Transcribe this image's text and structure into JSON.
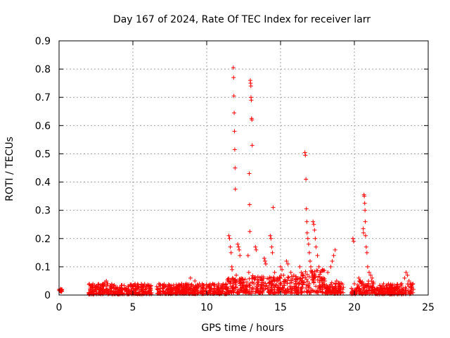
{
  "chart_data": {
    "type": "scatter",
    "title": "Day 167 of 2024, Rate Of TEC Index for receiver larr",
    "xlabel": "GPS time / hours",
    "ylabel": "ROTI / TECUs",
    "xlim": [
      0,
      25
    ],
    "ylim": [
      0,
      0.9
    ],
    "xticks": [
      "0",
      "5",
      "10",
      "15",
      "20",
      "25"
    ],
    "yticks": [
      "0",
      "0.1",
      "0.2",
      "0.3",
      "0.4",
      "0.5",
      "0.6",
      "0.7",
      "0.8",
      "0.9"
    ],
    "grid": true,
    "marker": "plus",
    "color": "#ff0000",
    "series": [
      {
        "points": [
          [
            0.0,
            0.02
          ],
          [
            0.05,
            0.015
          ],
          [
            0.1,
            0.018
          ],
          [
            0.15,
            0.012
          ],
          [
            0.2,
            0.02
          ],
          [
            2.1,
            0.02
          ],
          [
            2.3,
            0.025
          ],
          [
            2.5,
            0.03
          ],
          [
            2.7,
            0.02
          ],
          [
            2.9,
            0.035
          ],
          [
            3.0,
            0.04
          ],
          [
            3.1,
            0.045
          ],
          [
            3.2,
            0.05
          ],
          [
            3.3,
            0.04
          ],
          [
            3.5,
            0.03
          ],
          [
            3.7,
            0.025
          ],
          [
            4.0,
            0.02
          ],
          [
            4.3,
            0.018
          ],
          [
            4.6,
            0.02
          ],
          [
            5.0,
            0.022
          ],
          [
            5.3,
            0.025
          ],
          [
            5.6,
            0.02
          ],
          [
            5.9,
            0.03
          ],
          [
            6.1,
            0.035
          ],
          [
            6.2,
            0.025
          ],
          [
            6.7,
            0.02
          ],
          [
            7.0,
            0.025
          ],
          [
            7.3,
            0.03
          ],
          [
            7.6,
            0.028
          ],
          [
            8.0,
            0.03
          ],
          [
            8.3,
            0.035
          ],
          [
            8.6,
            0.04
          ],
          [
            8.9,
            0.06
          ],
          [
            9.2,
            0.05
          ],
          [
            9.5,
            0.04
          ],
          [
            9.8,
            0.035
          ],
          [
            10.1,
            0.03
          ],
          [
            10.4,
            0.04
          ],
          [
            10.7,
            0.03
          ],
          [
            11.0,
            0.035
          ],
          [
            11.3,
            0.04
          ],
          [
            11.5,
            0.21
          ],
          [
            11.55,
            0.2
          ],
          [
            11.6,
            0.17
          ],
          [
            11.65,
            0.15
          ],
          [
            11.7,
            0.1
          ],
          [
            11.72,
            0.09
          ],
          [
            11.75,
            0.06
          ],
          [
            11.8,
            0.805
          ],
          [
            11.82,
            0.77
          ],
          [
            11.84,
            0.705
          ],
          [
            11.86,
            0.645
          ],
          [
            11.88,
            0.58
          ],
          [
            11.9,
            0.515
          ],
          [
            11.92,
            0.45
          ],
          [
            11.94,
            0.375
          ],
          [
            12.0,
            0.07
          ],
          [
            12.05,
            0.05
          ],
          [
            12.1,
            0.18
          ],
          [
            12.15,
            0.17
          ],
          [
            12.2,
            0.16
          ],
          [
            12.25,
            0.14
          ],
          [
            12.3,
            0.04
          ],
          [
            12.5,
            0.03
          ],
          [
            12.7,
            0.035
          ],
          [
            12.8,
            0.14
          ],
          [
            12.85,
            0.08
          ],
          [
            12.88,
            0.43
          ],
          [
            12.9,
            0.32
          ],
          [
            12.92,
            0.225
          ],
          [
            12.95,
            0.76
          ],
          [
            12.97,
            0.75
          ],
          [
            12.99,
            0.74
          ],
          [
            13.0,
            0.7
          ],
          [
            13.02,
            0.69
          ],
          [
            13.04,
            0.625
          ],
          [
            13.06,
            0.62
          ],
          [
            13.08,
            0.53
          ],
          [
            13.2,
            0.04
          ],
          [
            13.3,
            0.17
          ],
          [
            13.35,
            0.16
          ],
          [
            13.5,
            0.05
          ],
          [
            13.7,
            0.03
          ],
          [
            13.9,
            0.13
          ],
          [
            13.95,
            0.12
          ],
          [
            14.0,
            0.11
          ],
          [
            14.3,
            0.21
          ],
          [
            14.35,
            0.2
          ],
          [
            14.4,
            0.17
          ],
          [
            14.45,
            0.15
          ],
          [
            14.5,
            0.31
          ],
          [
            14.6,
            0.08
          ],
          [
            14.8,
            0.06
          ],
          [
            15.0,
            0.1
          ],
          [
            15.1,
            0.09
          ],
          [
            15.2,
            0.07
          ],
          [
            15.4,
            0.12
          ],
          [
            15.5,
            0.11
          ],
          [
            15.7,
            0.08
          ],
          [
            15.9,
            0.07
          ],
          [
            16.0,
            0.04
          ],
          [
            16.3,
            0.1
          ],
          [
            16.4,
            0.08
          ],
          [
            16.5,
            0.06
          ],
          [
            16.65,
            0.505
          ],
          [
            16.68,
            0.495
          ],
          [
            16.72,
            0.41
          ],
          [
            16.75,
            0.305
          ],
          [
            16.78,
            0.26
          ],
          [
            16.8,
            0.22
          ],
          [
            16.85,
            0.2
          ],
          [
            16.9,
            0.18
          ],
          [
            16.95,
            0.15
          ],
          [
            17.0,
            0.12
          ],
          [
            17.05,
            0.1
          ],
          [
            17.2,
            0.26
          ],
          [
            17.25,
            0.25
          ],
          [
            17.3,
            0.23
          ],
          [
            17.35,
            0.2
          ],
          [
            17.4,
            0.17
          ],
          [
            17.5,
            0.14
          ],
          [
            17.6,
            0.1
          ],
          [
            17.7,
            0.08
          ],
          [
            17.8,
            0.06
          ],
          [
            18.0,
            0.05
          ],
          [
            18.2,
            0.08
          ],
          [
            18.4,
            0.1
          ],
          [
            18.5,
            0.12
          ],
          [
            18.6,
            0.14
          ],
          [
            18.7,
            0.16
          ],
          [
            18.8,
            0.05
          ],
          [
            19.0,
            0.03
          ],
          [
            19.2,
            0.02
          ],
          [
            19.9,
            0.2
          ],
          [
            19.95,
            0.19
          ],
          [
            20.0,
            0.04
          ],
          [
            20.1,
            0.02
          ],
          [
            20.3,
            0.06
          ],
          [
            20.4,
            0.05
          ],
          [
            20.5,
            0.04
          ],
          [
            20.6,
            0.235
          ],
          [
            20.62,
            0.22
          ],
          [
            20.65,
            0.355
          ],
          [
            20.67,
            0.35
          ],
          [
            20.7,
            0.325
          ],
          [
            20.72,
            0.3
          ],
          [
            20.74,
            0.26
          ],
          [
            20.76,
            0.21
          ],
          [
            20.8,
            0.17
          ],
          [
            20.85,
            0.15
          ],
          [
            20.9,
            0.1
          ],
          [
            21.0,
            0.08
          ],
          [
            21.1,
            0.07
          ],
          [
            21.2,
            0.06
          ],
          [
            21.3,
            0.04
          ],
          [
            21.5,
            0.02
          ],
          [
            21.8,
            0.02
          ],
          [
            22.1,
            0.015
          ],
          [
            22.4,
            0.02
          ],
          [
            22.7,
            0.025
          ],
          [
            23.0,
            0.03
          ],
          [
            23.2,
            0.04
          ],
          [
            23.4,
            0.06
          ],
          [
            23.5,
            0.08
          ],
          [
            23.6,
            0.07
          ],
          [
            23.7,
            0.05
          ],
          [
            23.8,
            0.04
          ],
          [
            23.9,
            0.03
          ],
          [
            24.0,
            0.02
          ]
        ],
        "bands": [
          {
            "x": [
              0.0,
              0.2
            ],
            "base": 0.012,
            "top": 0.022
          },
          {
            "x": [
              2.0,
              6.3
            ],
            "base": 0.003,
            "top": 0.04
          },
          {
            "x": [
              6.6,
              11.4
            ],
            "base": 0.004,
            "top": 0.04
          },
          {
            "x": [
              11.4,
              13.1
            ],
            "base": 0.005,
            "top": 0.06
          },
          {
            "x": [
              13.1,
              16.4
            ],
            "base": 0.006,
            "top": 0.07
          },
          {
            "x": [
              16.4,
              18.0
            ],
            "base": 0.008,
            "top": 0.09
          },
          {
            "x": [
              18.0,
              19.3
            ],
            "base": 0.005,
            "top": 0.045
          },
          {
            "x": [
              19.8,
              20.2
            ],
            "base": 0.003,
            "top": 0.025
          },
          {
            "x": [
              20.2,
              21.3
            ],
            "base": 0.004,
            "top": 0.05
          },
          {
            "x": [
              21.3,
              24.0
            ],
            "base": 0.003,
            "top": 0.04
          }
        ]
      }
    ]
  }
}
